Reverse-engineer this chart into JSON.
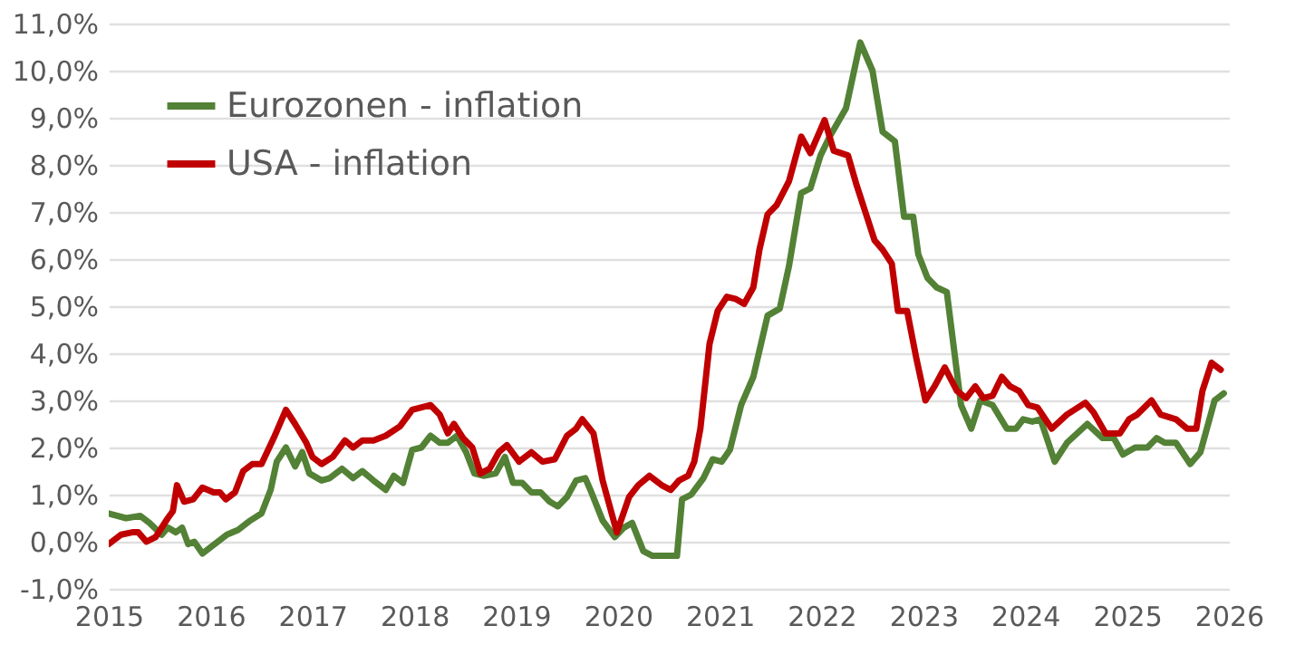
{
  "chart_data": {
    "type": "line",
    "legend": "top left",
    "grid": "y",
    "line_style": "solid",
    "marker": "none",
    "xlim": [
      2015,
      2026
    ],
    "xticks": [
      2015,
      2016,
      2017,
      2018,
      2019,
      2020,
      2021,
      2022,
      2023,
      2024,
      2025,
      2026
    ],
    "ylim": [
      -1,
      11
    ],
    "yticks": [
      {
        "value": -1,
        "label": "-1,0%"
      },
      {
        "value": 0,
        "label": "0,0%"
      },
      {
        "value": 1,
        "label": "1,0%"
      },
      {
        "value": 2,
        "label": "2,0%"
      },
      {
        "value": 3,
        "label": "3,0%"
      },
      {
        "value": 4,
        "label": "4,0%"
      },
      {
        "value": 5,
        "label": "5,0%"
      },
      {
        "value": 6,
        "label": "6,0%"
      },
      {
        "value": 7,
        "label": "7,0%"
      },
      {
        "value": 8,
        "label": "8,0%"
      },
      {
        "value": 9,
        "label": "9,0%"
      },
      {
        "value": 10,
        "label": "10,0%"
      },
      {
        "value": 11,
        "label": "11,0%"
      }
    ],
    "series": [
      {
        "name": "Eurozonen - inflation",
        "color": "#538135",
        "x": [
          2015.0,
          2015.17,
          2015.31,
          2015.4,
          2015.52,
          2015.58,
          2015.66,
          2015.72,
          2015.78,
          2015.84,
          2015.92,
          2016.16,
          2016.27,
          2016.39,
          2016.5,
          2016.59,
          2016.65,
          2016.74,
          2016.83,
          2016.9,
          2016.97,
          2017.09,
          2017.17,
          2017.29,
          2017.4,
          2017.49,
          2017.6,
          2017.72,
          2017.8,
          2017.89,
          2017.98,
          2018.07,
          2018.16,
          2018.25,
          2018.33,
          2018.42,
          2018.51,
          2018.59,
          2018.68,
          2018.8,
          2018.89,
          2018.97,
          2019.06,
          2019.15,
          2019.24,
          2019.33,
          2019.41,
          2019.5,
          2019.59,
          2019.68,
          2019.73,
          2019.85,
          2019.97,
          2020.06,
          2020.14,
          2020.25,
          2020.34,
          2020.46,
          2020.58,
          2020.63,
          2020.72,
          2020.84,
          2020.93,
          2021.02,
          2021.1,
          2021.21,
          2021.33,
          2021.47,
          2021.59,
          2021.68,
          2021.8,
          2021.89,
          2021.99,
          2022.08,
          2022.24,
          2022.38,
          2022.5,
          2022.6,
          2022.72,
          2022.81,
          2022.9,
          2022.95,
          2023.04,
          2023.13,
          2023.23,
          2023.37,
          2023.47,
          2023.56,
          2023.68,
          2023.82,
          2023.91,
          2023.98,
          2024.07,
          2024.15,
          2024.29,
          2024.41,
          2024.61,
          2024.76,
          2024.87,
          2024.96,
          2025.08,
          2025.2,
          2025.29,
          2025.37,
          2025.48,
          2025.62,
          2025.72,
          2025.86,
          2025.95
        ],
        "values": [
          0.6,
          0.5,
          0.55,
          0.4,
          0.15,
          0.3,
          0.2,
          0.3,
          -0.05,
          0.0,
          -0.25,
          0.15,
          0.25,
          0.45,
          0.6,
          1.1,
          1.7,
          2.0,
          1.6,
          1.9,
          1.45,
          1.3,
          1.35,
          1.55,
          1.35,
          1.5,
          1.3,
          1.1,
          1.4,
          1.25,
          1.95,
          2.0,
          2.25,
          2.1,
          2.1,
          2.25,
          1.9,
          1.45,
          1.4,
          1.45,
          1.8,
          1.25,
          1.25,
          1.05,
          1.05,
          0.85,
          0.75,
          0.95,
          1.3,
          1.35,
          1.1,
          0.45,
          0.1,
          0.3,
          0.4,
          -0.2,
          -0.3,
          -0.3,
          -0.3,
          0.9,
          1.0,
          1.35,
          1.75,
          1.7,
          1.95,
          2.9,
          3.5,
          4.8,
          4.95,
          5.85,
          7.4,
          7.5,
          8.2,
          8.6,
          9.2,
          10.6,
          10.0,
          8.7,
          8.5,
          6.9,
          6.9,
          6.1,
          5.6,
          5.4,
          5.3,
          2.9,
          2.4,
          3.0,
          2.9,
          2.4,
          2.4,
          2.6,
          2.55,
          2.6,
          1.7,
          2.1,
          2.5,
          2.2,
          2.2,
          1.85,
          2.0,
          2.0,
          2.2,
          2.1,
          2.1,
          1.65,
          1.9,
          3.0,
          3.15
        ]
      },
      {
        "name": "USA - inflation",
        "color": "#c00000",
        "x": [
          2015.0,
          2015.12,
          2015.23,
          2015.29,
          2015.37,
          2015.46,
          2015.58,
          2015.63,
          2015.67,
          2015.74,
          2015.83,
          2015.92,
          2016.03,
          2016.09,
          2016.15,
          2016.24,
          2016.32,
          2016.41,
          2016.5,
          2016.62,
          2016.74,
          2016.83,
          2016.94,
          2017.0,
          2017.09,
          2017.2,
          2017.32,
          2017.4,
          2017.49,
          2017.6,
          2017.72,
          2017.86,
          2017.98,
          2018.16,
          2018.25,
          2018.33,
          2018.39,
          2018.48,
          2018.57,
          2018.65,
          2018.74,
          2018.83,
          2018.91,
          2019.03,
          2019.15,
          2019.26,
          2019.38,
          2019.5,
          2019.59,
          2019.65,
          2019.76,
          2019.85,
          2019.99,
          2020.11,
          2020.2,
          2020.31,
          2020.43,
          2020.52,
          2020.6,
          2020.69,
          2020.75,
          2020.81,
          2020.9,
          2020.98,
          2021.07,
          2021.16,
          2021.24,
          2021.33,
          2021.39,
          2021.47,
          2021.56,
          2021.68,
          2021.8,
          2021.89,
          2022.03,
          2022.12,
          2022.26,
          2022.34,
          2022.43,
          2022.52,
          2022.6,
          2022.69,
          2022.75,
          2022.84,
          2022.93,
          2023.02,
          2023.11,
          2023.21,
          2023.33,
          2023.42,
          2023.51,
          2023.59,
          2023.68,
          2023.77,
          2023.85,
          2023.94,
          2024.03,
          2024.12,
          2024.26,
          2024.41,
          2024.59,
          2024.67,
          2024.79,
          2024.93,
          2025.02,
          2025.1,
          2025.24,
          2025.33,
          2025.48,
          2025.59,
          2025.68,
          2025.74,
          2025.83,
          2025.92
        ],
        "values": [
          -0.05,
          0.15,
          0.2,
          0.2,
          0.0,
          0.1,
          0.5,
          0.65,
          1.2,
          0.85,
          0.9,
          1.15,
          1.05,
          1.05,
          0.9,
          1.05,
          1.5,
          1.65,
          1.65,
          2.2,
          2.8,
          2.5,
          2.1,
          1.8,
          1.65,
          1.8,
          2.15,
          2.0,
          2.15,
          2.15,
          2.25,
          2.45,
          2.8,
          2.9,
          2.7,
          2.3,
          2.5,
          2.2,
          2.0,
          1.45,
          1.55,
          1.9,
          2.05,
          1.7,
          1.9,
          1.7,
          1.75,
          2.25,
          2.4,
          2.6,
          2.3,
          1.3,
          0.2,
          0.95,
          1.2,
          1.4,
          1.2,
          1.1,
          1.3,
          1.4,
          1.7,
          2.4,
          4.2,
          4.9,
          5.2,
          5.15,
          5.05,
          5.4,
          6.2,
          6.95,
          7.15,
          7.65,
          8.6,
          8.25,
          8.95,
          8.3,
          8.2,
          7.6,
          7.0,
          6.4,
          6.2,
          5.9,
          4.9,
          4.9,
          3.9,
          3.0,
          3.3,
          3.7,
          3.2,
          3.05,
          3.3,
          3.05,
          3.1,
          3.5,
          3.3,
          3.2,
          2.9,
          2.85,
          2.4,
          2.7,
          2.95,
          2.75,
          2.3,
          2.3,
          2.6,
          2.7,
          3.0,
          2.7,
          2.6,
          2.4,
          2.4,
          3.2,
          3.8,
          3.65
        ]
      }
    ]
  }
}
